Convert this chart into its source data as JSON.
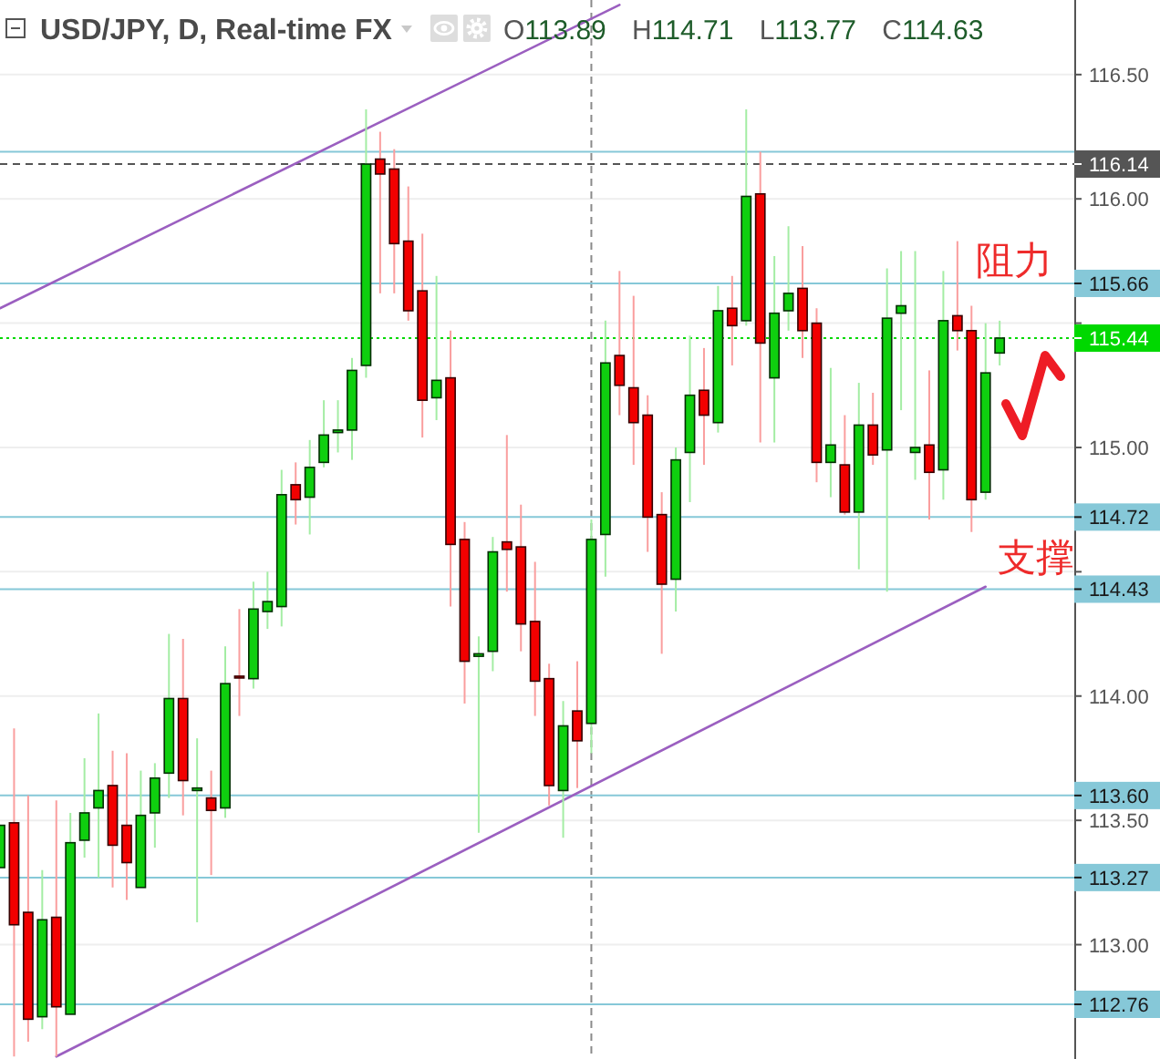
{
  "chart_data": {
    "type": "candlestick",
    "title": "USD/JPY, D, Real-time FX",
    "subtitle": "O113.89 H114.71 L113.77 C114.63",
    "categories": [
      null,
      null,
      null,
      null,
      null,
      null,
      null,
      null,
      null,
      null,
      null,
      null,
      null,
      null,
      null,
      null,
      null,
      null,
      null,
      null,
      null,
      null,
      null,
      null,
      null,
      null,
      null,
      null,
      null,
      null,
      null,
      null,
      null,
      null,
      null,
      null,
      null,
      null,
      null,
      null,
      null,
      null,
      null,
      null,
      null,
      null,
      null,
      null,
      null,
      null,
      null,
      null,
      null,
      null,
      null,
      null,
      null,
      null,
      null,
      null,
      null,
      null,
      null,
      null,
      null,
      null,
      null,
      null,
      null,
      null,
      null,
      null
    ],
    "ohlc": [
      [
        113.31,
        113.48,
        113.31,
        113.48
      ],
      [
        113.49,
        113.87,
        112.55,
        113.08
      ],
      [
        113.13,
        113.6,
        112.61,
        112.7
      ],
      [
        112.71,
        113.3,
        112.66,
        113.1
      ],
      [
        113.11,
        113.58,
        112.55,
        112.75
      ],
      [
        112.72,
        113.53,
        112.72,
        113.41
      ],
      [
        113.42,
        113.75,
        113.35,
        113.53
      ],
      [
        113.55,
        113.93,
        113.27,
        113.62
      ],
      [
        113.64,
        113.78,
        113.23,
        113.4
      ],
      [
        113.48,
        113.77,
        113.18,
        113.33
      ],
      [
        113.23,
        113.7,
        113.23,
        113.52
      ],
      [
        113.53,
        113.73,
        113.39,
        113.67
      ],
      [
        113.69,
        114.25,
        113.59,
        113.99
      ],
      [
        113.99,
        114.23,
        113.52,
        113.66
      ],
      [
        113.62,
        113.83,
        113.09,
        113.63
      ],
      [
        113.59,
        113.7,
        113.28,
        113.54
      ],
      [
        113.55,
        114.2,
        113.51,
        114.05
      ],
      [
        114.08,
        114.35,
        113.92,
        114.08
      ],
      [
        114.07,
        114.46,
        114.03,
        114.35
      ],
      [
        114.34,
        114.5,
        114.27,
        114.38
      ],
      [
        114.36,
        114.91,
        114.28,
        114.81
      ],
      [
        114.85,
        114.94,
        114.69,
        114.79
      ],
      [
        114.8,
        115.03,
        114.65,
        114.92
      ],
      [
        114.94,
        115.19,
        114.92,
        115.05
      ],
      [
        115.06,
        115.19,
        114.98,
        115.07
      ],
      [
        115.07,
        115.36,
        114.95,
        115.31
      ],
      [
        115.33,
        116.36,
        115.28,
        116.14
      ],
      [
        116.16,
        116.27,
        115.62,
        116.1
      ],
      [
        116.12,
        116.2,
        115.62,
        115.82
      ],
      [
        115.83,
        116.05,
        115.51,
        115.55
      ],
      [
        115.63,
        115.86,
        115.04,
        115.19
      ],
      [
        115.2,
        115.69,
        115.11,
        115.27
      ],
      [
        115.28,
        115.47,
        114.36,
        114.61
      ],
      [
        114.63,
        114.7,
        113.97,
        114.14
      ],
      [
        114.16,
        114.24,
        113.45,
        114.17
      ],
      [
        114.18,
        114.64,
        114.1,
        114.58
      ],
      [
        114.62,
        115.05,
        114.42,
        114.59
      ],
      [
        114.6,
        114.77,
        114.18,
        114.29
      ],
      [
        114.3,
        114.54,
        113.92,
        114.06
      ],
      [
        114.07,
        114.13,
        113.56,
        113.64
      ],
      [
        113.62,
        113.98,
        113.43,
        113.88
      ],
      [
        113.94,
        114.14,
        113.63,
        113.82
      ],
      [
        113.89,
        114.71,
        113.77,
        114.63
      ],
      [
        114.65,
        115.51,
        114.48,
        115.34
      ],
      [
        115.37,
        115.71,
        115.13,
        115.25
      ],
      [
        115.24,
        115.61,
        114.93,
        115.1
      ],
      [
        115.13,
        115.21,
        114.58,
        114.72
      ],
      [
        114.73,
        114.82,
        114.17,
        114.45
      ],
      [
        114.47,
        115.0,
        114.34,
        114.95
      ],
      [
        114.98,
        115.45,
        114.78,
        115.21
      ],
      [
        115.23,
        115.4,
        114.93,
        115.13
      ],
      [
        115.1,
        115.65,
        115.06,
        115.55
      ],
      [
        115.56,
        115.69,
        115.33,
        115.49
      ],
      [
        115.51,
        116.36,
        115.49,
        116.01
      ],
      [
        116.02,
        116.19,
        115.02,
        115.42
      ],
      [
        115.28,
        115.77,
        115.02,
        115.54
      ],
      [
        115.55,
        115.89,
        115.47,
        115.62
      ],
      [
        115.64,
        115.81,
        115.36,
        115.47
      ],
      [
        115.5,
        115.56,
        114.86,
        114.94
      ],
      [
        114.94,
        115.32,
        114.8,
        115.01
      ],
      [
        114.93,
        115.13,
        114.73,
        114.74
      ],
      [
        114.74,
        115.26,
        114.51,
        115.09
      ],
      [
        115.09,
        115.22,
        114.93,
        114.97
      ],
      [
        114.99,
        115.72,
        114.42,
        115.52
      ],
      [
        115.54,
        115.79,
        115.15,
        115.57
      ],
      [
        114.98,
        115.79,
        114.87,
        115.0
      ],
      [
        115.01,
        115.31,
        114.71,
        114.9
      ],
      [
        114.91,
        115.71,
        114.79,
        115.51
      ],
      [
        115.53,
        115.83,
        115.39,
        115.47
      ],
      [
        115.47,
        115.57,
        114.66,
        114.79
      ],
      [
        114.82,
        115.5,
        114.79,
        115.3
      ],
      [
        115.38,
        115.51,
        115.33,
        115.44
      ]
    ],
    "colors": [
      "#0fcf0f",
      "#f20000",
      "#f20000",
      "#0fcf0f",
      "#f20000",
      "#0fcf0f",
      "#0fcf0f",
      "#0fcf0f",
      "#f20000",
      "#f20000",
      "#0fcf0f",
      "#0fcf0f",
      "#0fcf0f",
      "#f20000",
      "#0fcf0f",
      "#f20000",
      "#0fcf0f",
      "#f20000",
      "#0fcf0f",
      "#0fcf0f",
      "#0fcf0f",
      "#f20000",
      "#0fcf0f",
      "#0fcf0f",
      "#0fcf0f",
      "#0fcf0f",
      "#0fcf0f",
      "#f20000",
      "#f20000",
      "#f20000",
      "#f20000",
      "#0fcf0f",
      "#f20000",
      "#f20000",
      "#0fcf0f",
      "#0fcf0f",
      "#f20000",
      "#f20000",
      "#f20000",
      "#f20000",
      "#0fcf0f",
      "#f20000",
      "#0fcf0f",
      "#0fcf0f",
      "#f20000",
      "#f20000",
      "#f20000",
      "#f20000",
      "#0fcf0f",
      "#0fcf0f",
      "#f20000",
      "#0fcf0f",
      "#f20000",
      "#0fcf0f",
      "#f20000",
      "#0fcf0f",
      "#0fcf0f",
      "#f20000",
      "#f20000",
      "#0fcf0f",
      "#f20000",
      "#0fcf0f",
      "#f20000",
      "#0fcf0f",
      "#0fcf0f",
      "#0fcf0f",
      "#f20000",
      "#0fcf0f",
      "#f20000",
      "#f20000",
      "#0fcf0f",
      "#0fcf0f"
    ],
    "series": [
      {
        "type": "line",
        "color": "#9b5fc0",
        "values": [
          115.56,
          null,
          null,
          null,
          null,
          null,
          null,
          null,
          null,
          null,
          null,
          null,
          null,
          null,
          null,
          null,
          null,
          null,
          null,
          null,
          null,
          null,
          null,
          null,
          null,
          null,
          null,
          null,
          null,
          null,
          null,
          null,
          null,
          null,
          null,
          null,
          null,
          null,
          null,
          null,
          null,
          null,
          null,
          null,
          116.78,
          null,
          null,
          null,
          null,
          null,
          null,
          null,
          null,
          null,
          null,
          null,
          null,
          null,
          null,
          null,
          null,
          null,
          null,
          null,
          null,
          null,
          null,
          null,
          null,
          null,
          null,
          null
        ]
      },
      {
        "type": "line",
        "color": "#9b5fc0",
        "values": [
          null,
          null,
          null,
          null,
          112.55,
          null,
          null,
          null,
          null,
          null,
          null,
          null,
          null,
          null,
          null,
          null,
          null,
          null,
          null,
          null,
          null,
          null,
          null,
          null,
          null,
          null,
          null,
          null,
          null,
          null,
          null,
          null,
          null,
          null,
          null,
          null,
          null,
          null,
          null,
          null,
          null,
          null,
          null,
          null,
          null,
          null,
          null,
          null,
          null,
          null,
          null,
          null,
          null,
          null,
          null,
          null,
          null,
          null,
          null,
          null,
          null,
          null,
          null,
          null,
          null,
          null,
          null,
          null,
          null,
          null,
          114.44,
          null
        ]
      }
    ],
    "ylim": [
      112.54,
      116.8
    ],
    "yticks": [
      {
        "value": 113,
        "label": "113.00"
      },
      {
        "value": 113.5,
        "label": "113.50"
      },
      {
        "value": 114,
        "label": "114.00"
      },
      {
        "value": 114.5,
        "label": null
      },
      {
        "value": 115,
        "label": "115.00"
      },
      {
        "value": 115.5,
        "label": null
      },
      {
        "value": 116,
        "label": "116.00"
      },
      {
        "value": 116.5,
        "label": "116.50"
      }
    ],
    "ref_lines": [
      {
        "axis": "y",
        "value": 116.19,
        "color": "#86c8d8"
      },
      {
        "axis": "y",
        "value": 116.14,
        "label": "116.14",
        "color": "#555555",
        "line_style": "dashed"
      },
      {
        "axis": "y",
        "value": 115.66,
        "label": "115.66",
        "color": "#86c8d8"
      },
      {
        "axis": "y",
        "value": 115.44,
        "label": "115.44",
        "color": "#00d800",
        "line_style": "dotted"
      },
      {
        "axis": "y",
        "value": 114.72,
        "label": "114.72",
        "color": "#86c8d8"
      },
      {
        "axis": "y",
        "value": 114.43,
        "label": "114.43",
        "color": "#86c8d8"
      },
      {
        "axis": "y",
        "value": 113.6,
        "label": "113.60",
        "color": "#86c8d8"
      },
      {
        "axis": "y",
        "value": 113.27,
        "label": "113.27",
        "color": "#86c8d8"
      },
      {
        "axis": "y",
        "value": 112.76,
        "label": "112.76",
        "color": "#86c8d8"
      }
    ],
    "annotations": [
      "阻力",
      "支撑"
    ],
    "grid": "y",
    "tick_labels": "y"
  }
}
